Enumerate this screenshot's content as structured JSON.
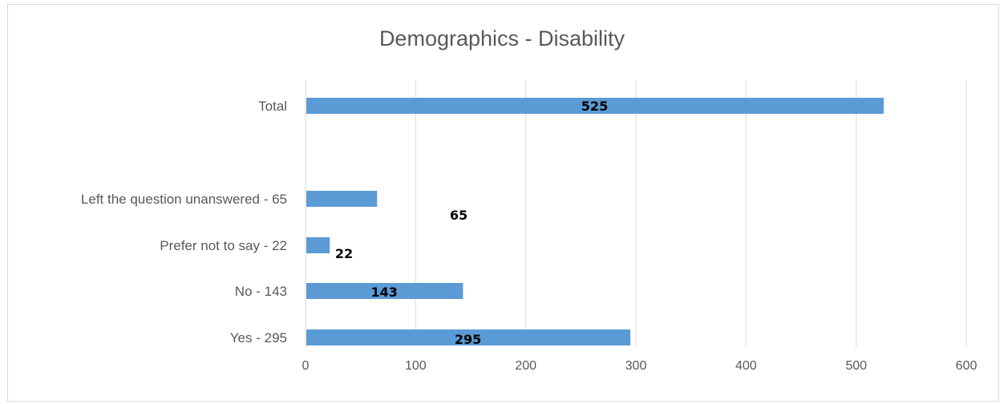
{
  "chart_data": {
    "type": "bar",
    "orientation": "horizontal",
    "title": "Demographics - Disability",
    "categories": [
      "Total",
      "",
      "Left the question unanswered - 65",
      "Prefer not to say - 22",
      "No - 143",
      "Yes - 295"
    ],
    "values": [
      525,
      null,
      65,
      22,
      143,
      295
    ],
    "data_labels": [
      "525",
      "",
      "65",
      "22",
      "143",
      "295"
    ],
    "xlim": [
      0,
      600
    ],
    "x_ticks": [
      "0",
      "100",
      "200",
      "300",
      "400",
      "500",
      "600"
    ],
    "grid": true,
    "legend": "none",
    "bar_color": "#5b9bd5"
  }
}
